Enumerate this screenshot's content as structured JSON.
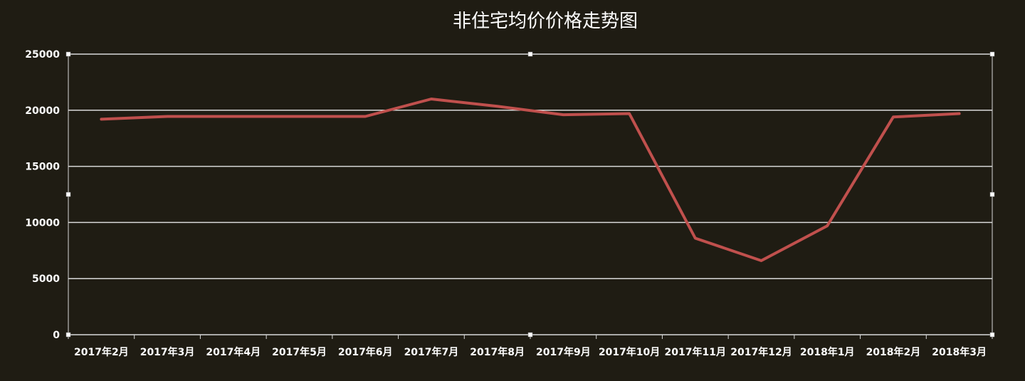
{
  "chart_data": {
    "type": "line",
    "title": "非住宅均价价格走势图",
    "categories": [
      "2017年2月",
      "2017年3月",
      "2017年4月",
      "2017年5月",
      "2017年6月",
      "2017年7月",
      "2017年8月",
      "2017年9月",
      "2017年10月",
      "2017年11月",
      "2017年12月",
      "2018年1月",
      "2018年2月",
      "2018年3月"
    ],
    "series": [
      {
        "values": [
          19200,
          19450,
          19450,
          19450,
          19450,
          21000,
          20350,
          19600,
          19700,
          8600,
          6600,
          9700,
          19400,
          19700
        ]
      }
    ],
    "ylim": [
      0,
      25000
    ],
    "yticks": [
      0,
      5000,
      10000,
      15000,
      20000,
      25000
    ],
    "grid": true,
    "legend": "none",
    "colors": {
      "background": "#1f1c13",
      "line": "#c0504d",
      "grid": "#d9d9d9",
      "text": "#ffffff"
    }
  }
}
